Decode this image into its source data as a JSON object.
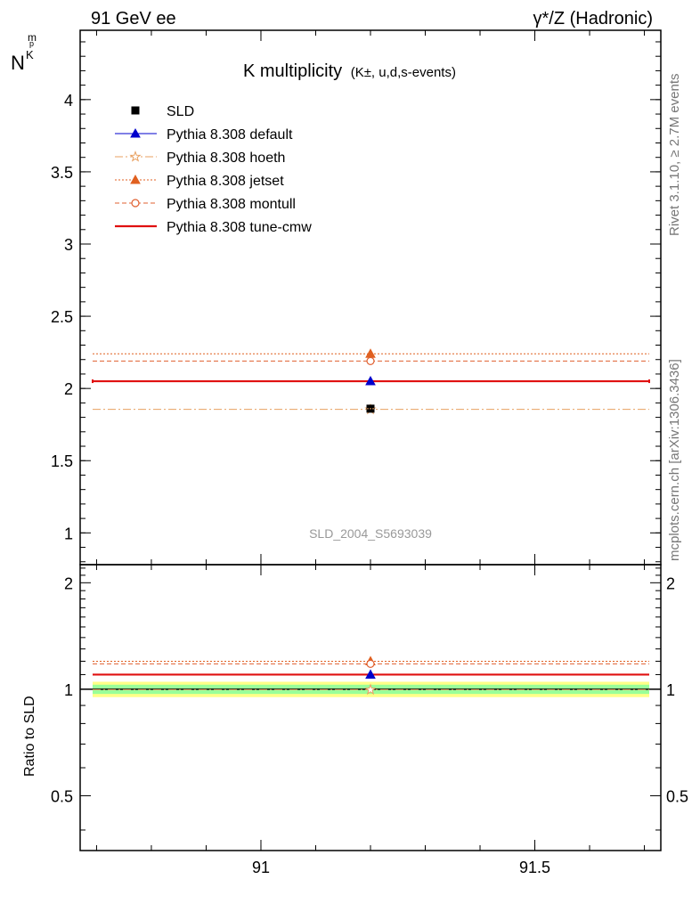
{
  "header": {
    "left": "91 GeV ee",
    "right": "γ*/Z (Hadronic)"
  },
  "side": {
    "rivet": "Rivet 3.1.10, ≥ 2.7M events",
    "mcplots": "mcplots.cern.ch [arXiv:1306.3436]"
  },
  "chart_data": {
    "type": "scatter",
    "title_main": "K multiplicity",
    "title_sub": "(K±, u,d,s-events)",
    "ylabel": "N",
    "ylabel_sub": "K",
    "ylabel_sup": "p",
    "ylabel_sub2": "m",
    "ratio_ylabel": "Ratio to SLD",
    "analysis_id": "SLD_2004_S5693039",
    "xlim": [
      90.67,
      91.73
    ],
    "ylim": [
      0.78,
      4.48
    ],
    "ratio_ylim": [
      0.35,
      2.25
    ],
    "x_ticks": [
      {
        "v": 91,
        "label": "91"
      },
      {
        "v": 91.5,
        "label": "91.5"
      }
    ],
    "y_ticks": [
      {
        "v": 1,
        "label": "1"
      },
      {
        "v": 1.5,
        "label": "1.5"
      },
      {
        "v": 2,
        "label": "2"
      },
      {
        "v": 2.5,
        "label": "2.5"
      },
      {
        "v": 3,
        "label": "3"
      },
      {
        "v": 3.5,
        "label": "3.5"
      },
      {
        "v": 4,
        "label": "4"
      }
    ],
    "ratio_ticks": [
      {
        "v": 0.5,
        "label": "0.5"
      },
      {
        "v": 1,
        "label": "1"
      },
      {
        "v": 2,
        "label": "2"
      }
    ],
    "data_point": {
      "name": "SLD",
      "x": 91.2,
      "y": 1.86,
      "err": 0.01,
      "ratio_band_inner": 0.03,
      "ratio_band_outer": 0.05
    },
    "series": [
      {
        "name": "Pythia 8.308 default",
        "color": "#0000cc",
        "dash": "",
        "marker": "triangle",
        "fill": true,
        "width": 1,
        "x": 91.2,
        "y": 2.05,
        "ratio": 1.1
      },
      {
        "name": "Pythia 8.308 hoeth",
        "color": "#e8a060",
        "dash": "9 3 2 3",
        "marker": "star",
        "fill": false,
        "width": 1,
        "x": 91.2,
        "y": 1.855,
        "ratio": 0.997
      },
      {
        "name": "Pythia 8.308 jetset",
        "color": "#e06020",
        "dash": "2 2",
        "marker": "triangle",
        "fill": true,
        "width": 1,
        "x": 91.2,
        "y": 2.24,
        "ratio": 1.2
      },
      {
        "name": "Pythia 8.308 montull",
        "color": "#e06030",
        "dash": "5 3",
        "marker": "circle",
        "fill": false,
        "width": 1,
        "x": 91.2,
        "y": 2.19,
        "ratio": 1.18
      },
      {
        "name": "Pythia 8.308 tune-cmw",
        "color": "#e01010",
        "dash": "",
        "marker": "none",
        "fill": false,
        "width": 2.2,
        "x": 91.2,
        "y": 2.05,
        "ratio": 1.1
      }
    ]
  }
}
